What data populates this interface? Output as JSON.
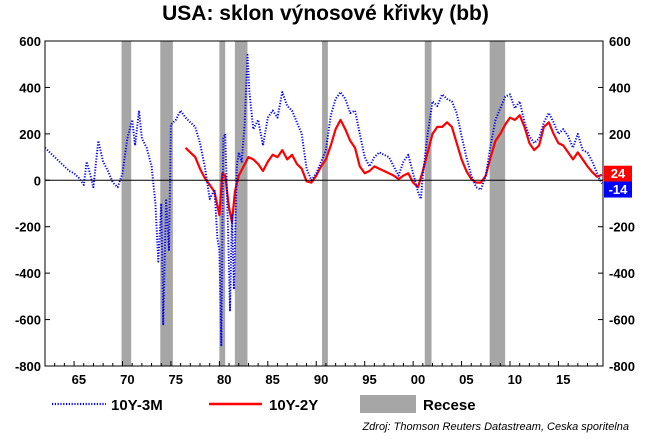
{
  "chart_data": {
    "type": "line",
    "title": "USA: sklon výnosové křivky (bb)",
    "xlabel": "",
    "ylabel": "",
    "ylim": [
      -800,
      600
    ],
    "xlim": [
      1962,
      2019.6
    ],
    "y_ticks": [
      600,
      400,
      200,
      0,
      -200,
      -400,
      -600,
      -800
    ],
    "x_ticks": [
      {
        "year": 1965,
        "label": "65"
      },
      {
        "year": 1970,
        "label": "70"
      },
      {
        "year": 1975,
        "label": "75"
      },
      {
        "year": 1980,
        "label": "80"
      },
      {
        "year": 1985,
        "label": "85"
      },
      {
        "year": 1990,
        "label": "90"
      },
      {
        "year": 1995,
        "label": "95"
      },
      {
        "year": 2000,
        "label": "00"
      },
      {
        "year": 2005,
        "label": "05"
      },
      {
        "year": 2010,
        "label": "10"
      },
      {
        "year": 2015,
        "label": "15"
      }
    ],
    "recessions": [
      {
        "start": 1969.9,
        "end": 1970.9
      },
      {
        "start": 1973.9,
        "end": 1975.2
      },
      {
        "start": 1980.0,
        "end": 1980.6
      },
      {
        "start": 1981.6,
        "end": 1982.9
      },
      {
        "start": 1990.6,
        "end": 1991.2
      },
      {
        "start": 2001.2,
        "end": 2001.9
      },
      {
        "start": 2007.9,
        "end": 2009.5
      }
    ],
    "series": [
      {
        "name": "10Y-3M",
        "color": "#0000ff",
        "style": "dotted",
        "points": [
          [
            1962.0,
            140
          ],
          [
            1962.5,
            120
          ],
          [
            1963.0,
            100
          ],
          [
            1963.5,
            80
          ],
          [
            1964.0,
            60
          ],
          [
            1964.5,
            40
          ],
          [
            1965.0,
            30
          ],
          [
            1965.5,
            10
          ],
          [
            1966.0,
            -20
          ],
          [
            1966.3,
            80
          ],
          [
            1966.7,
            20
          ],
          [
            1967.0,
            -30
          ],
          [
            1967.5,
            170
          ],
          [
            1968.0,
            80
          ],
          [
            1968.5,
            40
          ],
          [
            1969.0,
            -10
          ],
          [
            1969.5,
            -30
          ],
          [
            1970.0,
            30
          ],
          [
            1970.5,
            180
          ],
          [
            1971.0,
            260
          ],
          [
            1971.3,
            150
          ],
          [
            1971.7,
            300
          ],
          [
            1972.0,
            180
          ],
          [
            1972.5,
            140
          ],
          [
            1973.0,
            60
          ],
          [
            1973.4,
            -100
          ],
          [
            1973.7,
            -350
          ],
          [
            1974.0,
            -100
          ],
          [
            1974.2,
            -620
          ],
          [
            1974.5,
            -80
          ],
          [
            1974.8,
            -300
          ],
          [
            1975.0,
            240
          ],
          [
            1975.5,
            260
          ],
          [
            1976.0,
            300
          ],
          [
            1976.5,
            270
          ],
          [
            1977.0,
            250
          ],
          [
            1977.5,
            230
          ],
          [
            1978.0,
            160
          ],
          [
            1978.5,
            60
          ],
          [
            1979.0,
            -80
          ],
          [
            1979.5,
            -40
          ],
          [
            1979.8,
            -250
          ],
          [
            1980.0,
            -300
          ],
          [
            1980.2,
            -710
          ],
          [
            1980.4,
            180
          ],
          [
            1980.6,
            200
          ],
          [
            1980.9,
            -220
          ],
          [
            1981.1,
            -560
          ],
          [
            1981.3,
            -150
          ],
          [
            1981.5,
            -470
          ],
          [
            1981.8,
            60
          ],
          [
            1982.0,
            120
          ],
          [
            1982.3,
            80
          ],
          [
            1982.6,
            240
          ],
          [
            1982.9,
            540
          ],
          [
            1983.1,
            380
          ],
          [
            1983.5,
            220
          ],
          [
            1984.0,
            260
          ],
          [
            1984.5,
            150
          ],
          [
            1985.0,
            270
          ],
          [
            1985.5,
            300
          ],
          [
            1986.0,
            270
          ],
          [
            1986.5,
            380
          ],
          [
            1987.0,
            320
          ],
          [
            1987.5,
            300
          ],
          [
            1988.0,
            250
          ],
          [
            1988.5,
            200
          ],
          [
            1989.0,
            50
          ],
          [
            1989.5,
            0
          ],
          [
            1990.0,
            30
          ],
          [
            1990.5,
            80
          ],
          [
            1991.0,
            130
          ],
          [
            1991.5,
            280
          ],
          [
            1992.0,
            350
          ],
          [
            1992.5,
            380
          ],
          [
            1993.0,
            350
          ],
          [
            1993.5,
            290
          ],
          [
            1994.0,
            300
          ],
          [
            1994.5,
            200
          ],
          [
            1995.0,
            100
          ],
          [
            1995.5,
            60
          ],
          [
            1996.0,
            100
          ],
          [
            1996.5,
            120
          ],
          [
            1997.0,
            110
          ],
          [
            1997.5,
            100
          ],
          [
            1998.0,
            60
          ],
          [
            1998.5,
            20
          ],
          [
            1999.0,
            80
          ],
          [
            1999.5,
            110
          ],
          [
            2000.0,
            30
          ],
          [
            2000.5,
            -50
          ],
          [
            2000.8,
            -80
          ],
          [
            2001.0,
            20
          ],
          [
            2001.5,
            200
          ],
          [
            2002.0,
            340
          ],
          [
            2002.5,
            320
          ],
          [
            2003.0,
            370
          ],
          [
            2003.5,
            350
          ],
          [
            2004.0,
            340
          ],
          [
            2004.5,
            290
          ],
          [
            2005.0,
            190
          ],
          [
            2005.5,
            100
          ],
          [
            2006.0,
            20
          ],
          [
            2006.5,
            -30
          ],
          [
            2007.0,
            -40
          ],
          [
            2007.5,
            20
          ],
          [
            2008.0,
            150
          ],
          [
            2008.5,
            260
          ],
          [
            2009.0,
            310
          ],
          [
            2009.5,
            360
          ],
          [
            2010.0,
            370
          ],
          [
            2010.5,
            310
          ],
          [
            2011.0,
            340
          ],
          [
            2011.5,
            250
          ],
          [
            2012.0,
            190
          ],
          [
            2012.5,
            160
          ],
          [
            2013.0,
            180
          ],
          [
            2013.5,
            250
          ],
          [
            2014.0,
            290
          ],
          [
            2014.5,
            250
          ],
          [
            2015.0,
            200
          ],
          [
            2015.5,
            220
          ],
          [
            2016.0,
            190
          ],
          [
            2016.5,
            140
          ],
          [
            2017.0,
            200
          ],
          [
            2017.5,
            130
          ],
          [
            2018.0,
            120
          ],
          [
            2018.5,
            80
          ],
          [
            2018.9,
            40
          ],
          [
            2019.2,
            10
          ],
          [
            2019.5,
            -14
          ]
        ]
      },
      {
        "name": "10Y-2Y",
        "color": "#ff0000",
        "style": "solid",
        "points": [
          [
            1976.5,
            140
          ],
          [
            1977.0,
            120
          ],
          [
            1977.5,
            100
          ],
          [
            1978.0,
            50
          ],
          [
            1978.5,
            10
          ],
          [
            1979.0,
            -20
          ],
          [
            1979.5,
            -50
          ],
          [
            1980.0,
            -150
          ],
          [
            1980.3,
            30
          ],
          [
            1980.6,
            20
          ],
          [
            1981.0,
            -120
          ],
          [
            1981.3,
            -180
          ],
          [
            1981.6,
            -50
          ],
          [
            1982.0,
            20
          ],
          [
            1982.5,
            60
          ],
          [
            1983.0,
            100
          ],
          [
            1983.5,
            90
          ],
          [
            1984.0,
            70
          ],
          [
            1984.5,
            40
          ],
          [
            1985.0,
            80
          ],
          [
            1985.5,
            110
          ],
          [
            1986.0,
            100
          ],
          [
            1986.5,
            130
          ],
          [
            1987.0,
            90
          ],
          [
            1987.5,
            110
          ],
          [
            1988.0,
            70
          ],
          [
            1988.5,
            50
          ],
          [
            1989.0,
            -5
          ],
          [
            1989.5,
            -10
          ],
          [
            1990.0,
            20
          ],
          [
            1990.5,
            60
          ],
          [
            1991.0,
            90
          ],
          [
            1991.5,
            150
          ],
          [
            1992.0,
            220
          ],
          [
            1992.5,
            260
          ],
          [
            1993.0,
            220
          ],
          [
            1993.5,
            170
          ],
          [
            1994.0,
            140
          ],
          [
            1994.5,
            60
          ],
          [
            1995.0,
            30
          ],
          [
            1995.5,
            40
          ],
          [
            1996.0,
            60
          ],
          [
            1996.5,
            50
          ],
          [
            1997.0,
            40
          ],
          [
            1997.5,
            30
          ],
          [
            1998.0,
            20
          ],
          [
            1998.5,
            5
          ],
          [
            1999.0,
            20
          ],
          [
            1999.5,
            30
          ],
          [
            2000.0,
            -10
          ],
          [
            2000.5,
            -30
          ],
          [
            2001.0,
            40
          ],
          [
            2001.5,
            120
          ],
          [
            2002.0,
            200
          ],
          [
            2002.5,
            230
          ],
          [
            2003.0,
            230
          ],
          [
            2003.5,
            250
          ],
          [
            2004.0,
            230
          ],
          [
            2004.5,
            160
          ],
          [
            2005.0,
            90
          ],
          [
            2005.5,
            40
          ],
          [
            2006.0,
            5
          ],
          [
            2006.5,
            -10
          ],
          [
            2007.0,
            -10
          ],
          [
            2007.5,
            20
          ],
          [
            2008.0,
            100
          ],
          [
            2008.5,
            170
          ],
          [
            2009.0,
            200
          ],
          [
            2009.5,
            240
          ],
          [
            2010.0,
            270
          ],
          [
            2010.5,
            260
          ],
          [
            2011.0,
            280
          ],
          [
            2011.5,
            230
          ],
          [
            2012.0,
            160
          ],
          [
            2012.5,
            130
          ],
          [
            2013.0,
            150
          ],
          [
            2013.5,
            230
          ],
          [
            2014.0,
            250
          ],
          [
            2014.5,
            200
          ],
          [
            2015.0,
            160
          ],
          [
            2015.5,
            150
          ],
          [
            2016.0,
            120
          ],
          [
            2016.5,
            90
          ],
          [
            2017.0,
            120
          ],
          [
            2017.5,
            90
          ],
          [
            2018.0,
            60
          ],
          [
            2018.5,
            35
          ],
          [
            2019.0,
            15
          ],
          [
            2019.5,
            24
          ]
        ]
      }
    ],
    "end_labels": [
      {
        "series": "10Y-2Y",
        "text": "24",
        "value": 24,
        "color": "#ff0000"
      },
      {
        "series": "10Y-3M",
        "text": "-14",
        "value": -14,
        "color": "#0000ff"
      }
    ],
    "legend": {
      "position": "bottom",
      "items": [
        {
          "label": "10Y-3M",
          "color": "#0000ff",
          "style": "dotted"
        },
        {
          "label": "10Y-2Y",
          "color": "#ff0000",
          "style": "solid"
        },
        {
          "label": "Recese",
          "color": "#a6a6a6",
          "style": "box"
        }
      ]
    },
    "recession_color": "#a6a6a6",
    "grid": false
  },
  "source": "Zdroj: Thomson Reuters Datastream, Ceska sporitelna"
}
